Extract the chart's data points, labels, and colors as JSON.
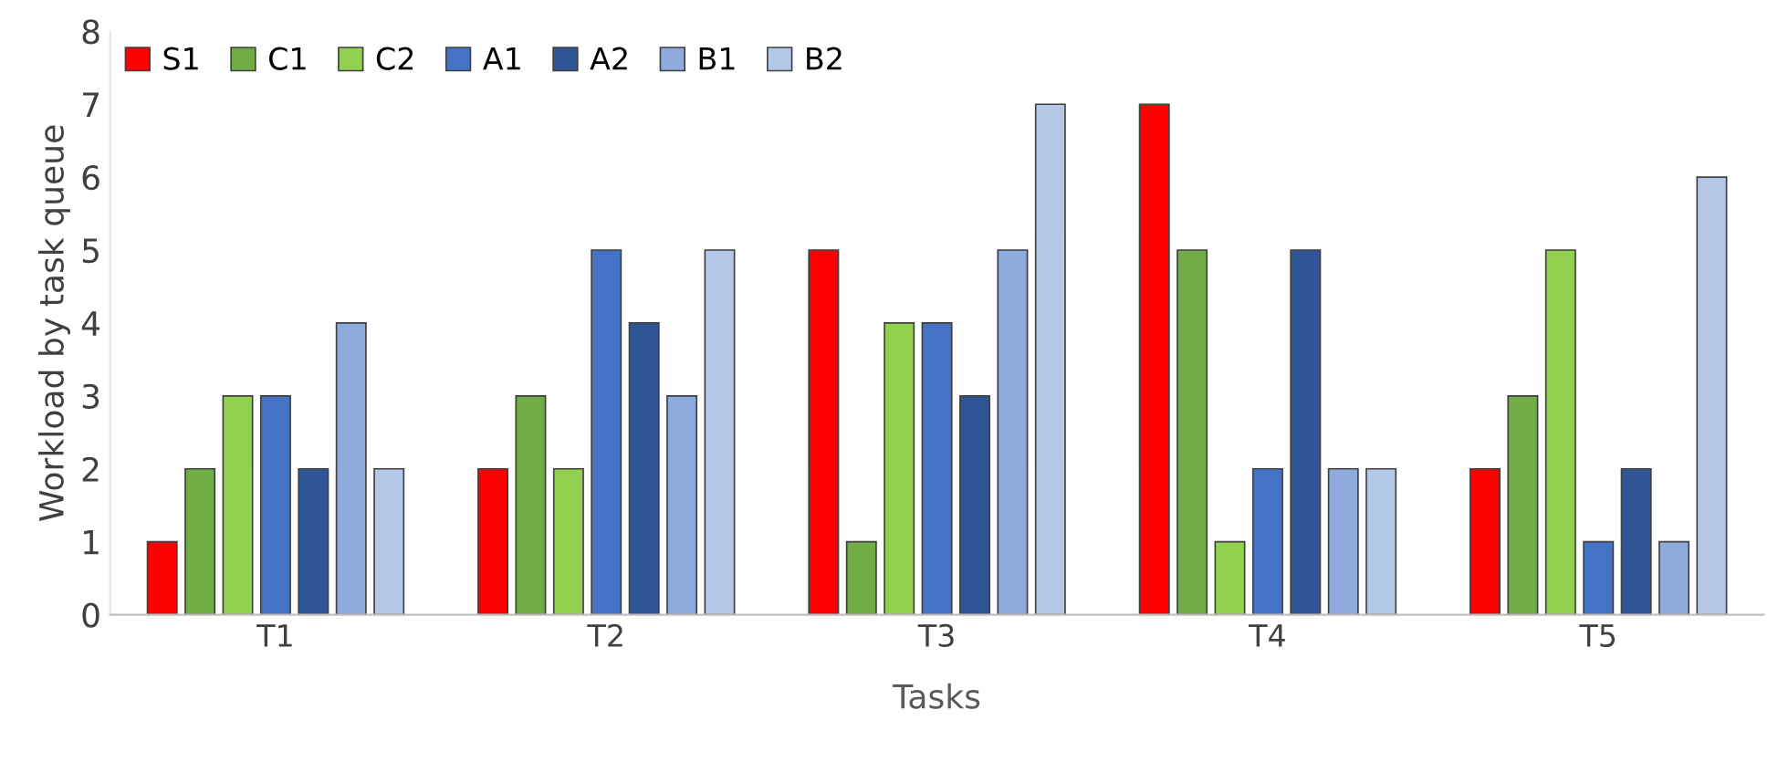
{
  "chart_data": {
    "type": "bar",
    "xlabel": "Tasks",
    "ylabel": "Workload by task queue",
    "categories": [
      "T1",
      "T2",
      "T3",
      "T4",
      "T5"
    ],
    "series": [
      {
        "name": "S1",
        "color": "#ff0000",
        "values": [
          1,
          2,
          5,
          7,
          2
        ]
      },
      {
        "name": "C1",
        "color": "#70ad47",
        "values": [
          2,
          3,
          1,
          5,
          3
        ]
      },
      {
        "name": "C2",
        "color": "#92d050",
        "values": [
          3,
          2,
          4,
          1,
          5
        ]
      },
      {
        "name": "A1",
        "color": "#4472c4",
        "values": [
          3,
          5,
          4,
          2,
          1
        ]
      },
      {
        "name": "A2",
        "color": "#2f5597",
        "values": [
          2,
          4,
          3,
          5,
          2
        ]
      },
      {
        "name": "B1",
        "color": "#8faadc",
        "values": [
          4,
          3,
          5,
          2,
          1
        ]
      },
      {
        "name": "B2",
        "color": "#b4c7e7",
        "values": [
          2,
          5,
          7,
          2,
          6
        ]
      }
    ],
    "ylim": [
      0,
      8
    ],
    "yticks": [
      0,
      1,
      2,
      3,
      4,
      5,
      6,
      7,
      8
    ],
    "grid": false,
    "legend": "top left"
  }
}
